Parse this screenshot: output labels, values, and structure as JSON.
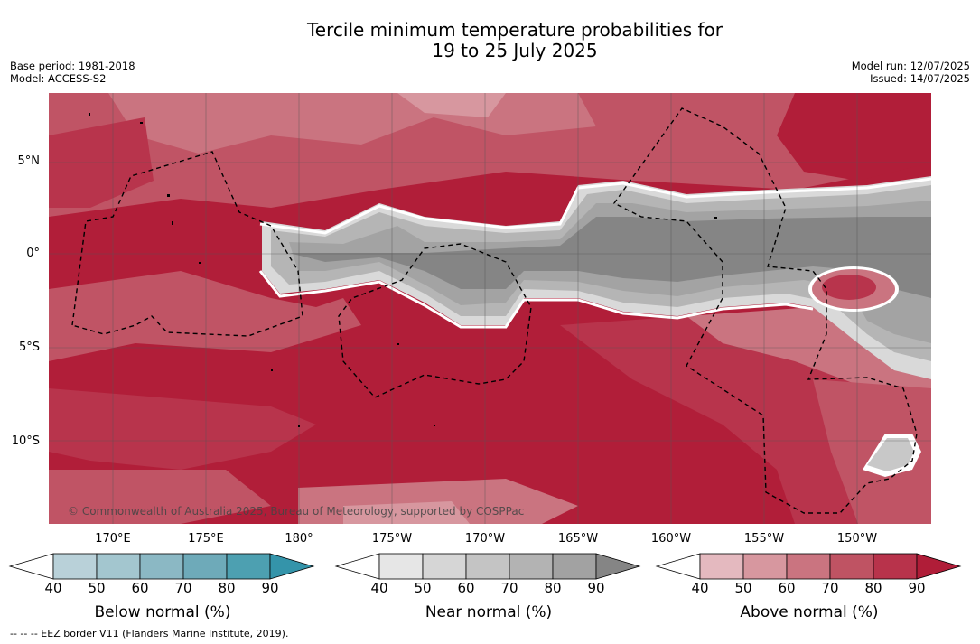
{
  "title_line1": "Tercile minimum temperature probabilities for",
  "title_line2": "19 to 25 July 2025",
  "base_period": "Base period: 1981-2018",
  "model": "Model: ACCESS-S2",
  "model_run": "Model run: 12/07/2025",
  "issued": "Issued: 14/07/2025",
  "lat_labels": [
    "5°N",
    "0°",
    "5°S",
    "10°S"
  ],
  "lon_labels": [
    "170°E",
    "175°E",
    "180°",
    "175°W",
    "170°W",
    "165°W",
    "160°W",
    "155°W",
    "150°W"
  ],
  "copyright": "© Commonwealth of Australia 2025, Bureau of Meteorology, supported by COSPPac",
  "legends": [
    {
      "title": "Below normal (%)",
      "ticks": [
        "40",
        "50",
        "60",
        "70",
        "80",
        "90"
      ],
      "colors": [
        "#ffffff",
        "#b9d1d9",
        "#a3c6cf",
        "#8bb8c4",
        "#6eaab9",
        "#4da0b1",
        "#3494aa"
      ]
    },
    {
      "title": "Near normal (%)",
      "ticks": [
        "40",
        "50",
        "60",
        "70",
        "80",
        "90"
      ],
      "colors": [
        "#ffffff",
        "#e6e6e6",
        "#d6d6d6",
        "#c4c4c4",
        "#b3b3b3",
        "#a2a2a2",
        "#858585"
      ]
    },
    {
      "title": "Above normal (%)",
      "ticks": [
        "40",
        "50",
        "60",
        "70",
        "80",
        "90"
      ],
      "colors": [
        "#ffffff",
        "#e4b9bf",
        "#d7979f",
        "#ca7480",
        "#bf5363",
        "#b8334b",
        "#b01d38"
      ]
    }
  ],
  "footnote": "--  --  -- EEZ border V11 (Flanders Marine Institute, 2019).",
  "map_colors": {
    "above_90": "#b11e39",
    "above_80": "#b8344c",
    "above_70": "#c05465",
    "above_60": "#ca7480",
    "above_50": "#d7979f",
    "near_90": "#858585",
    "near_80": "#a3a3a3",
    "near_70": "#b5b5b5",
    "near_60": "#c8c8c8",
    "near_50": "#d9d9d9"
  }
}
